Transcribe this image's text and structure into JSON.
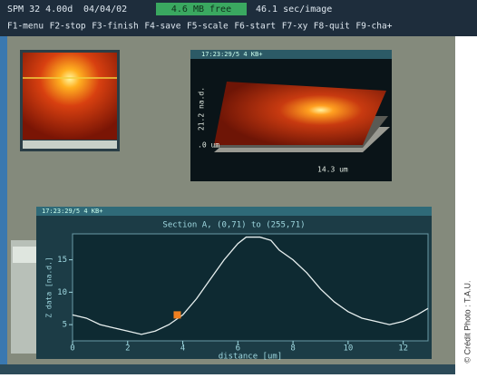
{
  "header": {
    "software": "SPM 32 4.00d",
    "date": "04/04/02",
    "memory": "4.6 MB free",
    "scan_time": "46.1 sec/image"
  },
  "function_keys": [
    "F1-menu",
    "F2-stop",
    "F3-finish",
    "F4-save",
    "F5-scale",
    "F6-start",
    "F7-xy",
    "F8-quit",
    "F9-cha+"
  ],
  "image_3d": {
    "title": "17:23:29/5 4 KB+",
    "z_label": "21.2 na.d.",
    "origin_label": ".0 um",
    "x_extent_label": "14.3 um"
  },
  "section_window": {
    "title": "17:23:29/5 4 KB+"
  },
  "chart_data": {
    "type": "line",
    "title": "Section A, (0,71) to (255,71)",
    "x_label": "distance [um]",
    "y_label": "Z data [na.d.]",
    "x": [
      0,
      0.5,
      1,
      1.5,
      2,
      2.5,
      3,
      3.5,
      4,
      4.5,
      5,
      5.5,
      6,
      6.3,
      6.8,
      7.2,
      7.5,
      8,
      8.5,
      9,
      9.5,
      10,
      10.5,
      11,
      11.5,
      12,
      12.5,
      12.9
    ],
    "values": [
      6.5,
      6,
      5,
      4.5,
      4,
      3.5,
      4,
      5,
      6.5,
      9,
      12,
      15,
      17.5,
      18.5,
      18.5,
      18,
      16.5,
      15,
      13,
      10.5,
      8.5,
      7,
      6,
      5.5,
      5,
      5.5,
      6.5,
      7.5
    ],
    "color": "#e8f0f0",
    "cursor_x": 3.8,
    "cursor_y": 6.5,
    "xlim": [
      0,
      12.9
    ],
    "ylim": [
      2.5,
      19
    ],
    "xticks": [
      0,
      2,
      4,
      6,
      8,
      10,
      12
    ],
    "yticks": [
      5,
      10,
      15
    ]
  },
  "credit": "© Crédit Photo : T.A.U."
}
